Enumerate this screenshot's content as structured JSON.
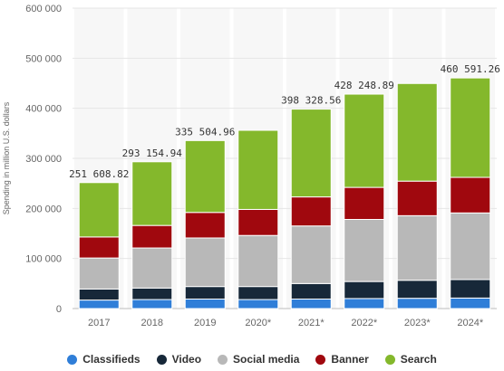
{
  "chart_data": {
    "type": "bar",
    "stacked": true,
    "categories": [
      "2017",
      "2018",
      "2019",
      "2020*",
      "2021*",
      "2022*",
      "2023*",
      "2024*"
    ],
    "series": [
      {
        "name": "Classifieds",
        "color": "#2f7ed8",
        "values": [
          17000,
          18000,
          19000,
          18000,
          19000,
          20000,
          20500,
          21000
        ]
      },
      {
        "name": "Video",
        "color": "#172839",
        "values": [
          22000,
          23000,
          25000,
          26000,
          31000,
          34000,
          36000,
          37000
        ]
      },
      {
        "name": "Social media",
        "color": "#b8b8b8",
        "values": [
          62000,
          80000,
          97000,
          102000,
          115000,
          124000,
          129000,
          133000
        ]
      },
      {
        "name": "Banner",
        "color": "#a0080e",
        "values": [
          42000,
          45000,
          51000,
          52000,
          58000,
          64000,
          69000,
          71000
        ]
      },
      {
        "name": "Search",
        "color": "#84b82c",
        "values": [
          108608.82,
          127154.94,
          143504.96,
          158000,
          175328.56,
          186248.89,
          195000,
          198591.26
        ]
      }
    ],
    "totals_labels": [
      "251 608.82",
      "293 154.94",
      "335 504.96",
      "",
      "398 328.56",
      "428 248.89",
      "",
      "460 591.26"
    ],
    "y_ticks": [
      "0",
      "100 000",
      "200 000",
      "300 000",
      "400 000",
      "500 000",
      "600 000"
    ],
    "ylim": [
      0,
      600000
    ],
    "ylabel": "Spending in million U.S. dollars",
    "xlabel": "",
    "grid": true,
    "legend_position": "bottom"
  }
}
